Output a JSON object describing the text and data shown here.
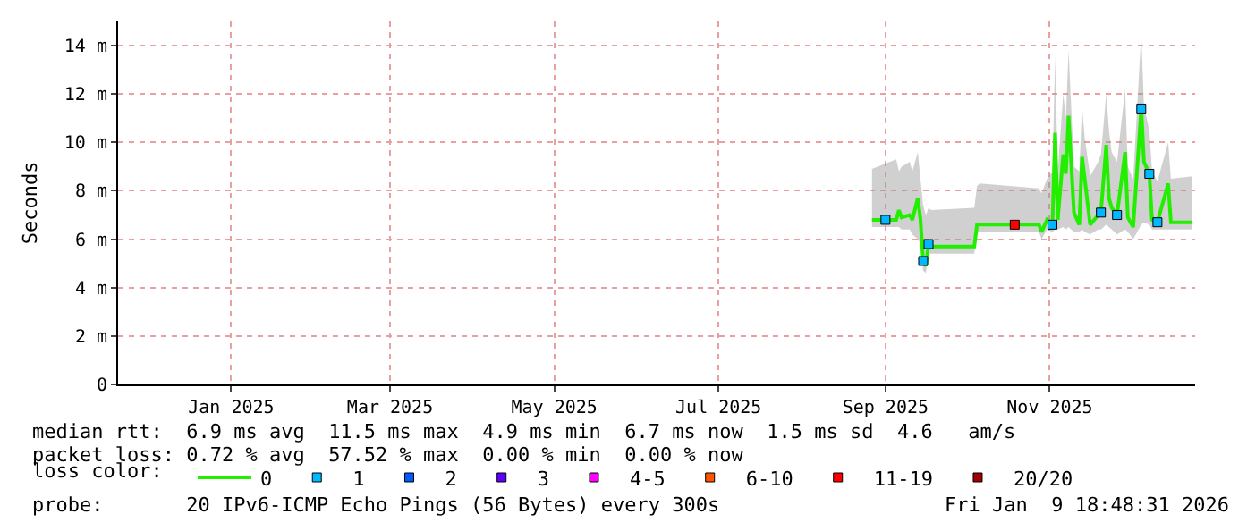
{
  "chart_data": {
    "type": "line",
    "ylabel": "Seconds",
    "legend_title": "loss color:",
    "legend": "bottom",
    "grid": true,
    "marker": "none",
    "line_style": "solid",
    "xlim": [
      "2024-12-05",
      "2026-01-09"
    ],
    "xticks": [
      {
        "value": "2025-01-16",
        "label": "Jan 2025"
      },
      {
        "value": "2025-03-16",
        "label": "Mar 2025"
      },
      {
        "value": "2025-05-16",
        "label": "May 2025"
      },
      {
        "value": "2025-07-16",
        "label": "Jul 2025"
      },
      {
        "value": "2025-09-16",
        "label": "Sep 2025"
      },
      {
        "value": "2025-11-16",
        "label": "Nov 2025"
      }
    ],
    "ylim": [
      0,
      15
    ],
    "yticks": [
      0,
      {
        "value": 2,
        "label": "2 m"
      },
      {
        "value": 4,
        "label": "4 m"
      },
      {
        "value": 6,
        "label": "6 m"
      },
      {
        "value": 8,
        "label": "8 m"
      },
      {
        "value": 10,
        "label": "10 m"
      },
      {
        "value": 12,
        "label": "12 m"
      },
      {
        "value": 14,
        "label": "14 m"
      }
    ],
    "series": [
      {
        "name": "0",
        "color": "#22ee00",
        "x": [
          "2025-09-11",
          "2025-09-20",
          "2025-09-21",
          "2025-09-22",
          "2025-09-25",
          "2025-09-26",
          "2025-09-28",
          "2025-09-29",
          "2025-09-30",
          "2025-10-01",
          "2025-10-02",
          "2025-10-03",
          "2025-10-19",
          "2025-10-20",
          "2025-10-21",
          "2025-11-12",
          "2025-11-13",
          "2025-11-15",
          "2025-11-17",
          "2025-11-18",
          "2025-11-19",
          "2025-11-21",
          "2025-11-22",
          "2025-11-23",
          "2025-11-25",
          "2025-11-27",
          "2025-11-28",
          "2025-11-29",
          "2025-12-01",
          "2025-12-04",
          "2025-12-05",
          "2025-12-07",
          "2025-12-08",
          "2025-12-09",
          "2025-12-11",
          "2025-12-14",
          "2025-12-15",
          "2025-12-17",
          "2025-12-20",
          "2025-12-21",
          "2025-12-23",
          "2025-12-24",
          "2025-12-26",
          "2025-12-30",
          "2025-12-31",
          "2026-01-08"
        ],
        "values": [
          6.8,
          6.8,
          7.2,
          6.9,
          7.0,
          6.8,
          7.7,
          6.8,
          5.1,
          4.9,
          5.8,
          5.7,
          5.7,
          6.6,
          6.6,
          6.6,
          6.3,
          6.8,
          6.6,
          10.4,
          6.8,
          9.5,
          8.7,
          11.1,
          7.1,
          6.6,
          9.4,
          8.5,
          6.6,
          7.0,
          7.1,
          9.9,
          7.7,
          7.3,
          7.0,
          9.6,
          6.9,
          6.5,
          11.4,
          9.2,
          8.7,
          6.8,
          6.7,
          8.3,
          6.7,
          6.7
        ],
        "lower": [
          6.5,
          6.5,
          6.5,
          6.4,
          6.4,
          6.2,
          6.0,
          5.8,
          4.7,
          4.6,
          5.4,
          5.4,
          5.4,
          6.3,
          6.3,
          6.3,
          6.0,
          6.4,
          6.3,
          6.4,
          6.4,
          6.5,
          6.4,
          6.5,
          6.3,
          6.3,
          6.4,
          6.3,
          6.2,
          6.4,
          6.4,
          6.6,
          6.5,
          6.4,
          6.2,
          6.4,
          6.3,
          6.0,
          6.6,
          6.7,
          6.6,
          6.4,
          6.4,
          6.4,
          6.4,
          6.4
        ],
        "upper": [
          8.9,
          9.3,
          8.8,
          9.0,
          9.2,
          8.8,
          9.6,
          8.5,
          7.4,
          7.0,
          7.3,
          7.2,
          7.3,
          8.2,
          8.3,
          8.1,
          7.9,
          8.5,
          8.8,
          13.5,
          8.8,
          12.0,
          11.0,
          13.8,
          9.0,
          8.8,
          11.5,
          10.2,
          8.6,
          9.2,
          9.5,
          12.0,
          10.5,
          9.6,
          9.2,
          12.2,
          9.0,
          8.5,
          14.5,
          11.5,
          10.5,
          8.8,
          8.4,
          10.0,
          8.5,
          8.6
        ]
      },
      {
        "name": "1",
        "color": "#00b8ff",
        "type": "scatter",
        "marker": "square",
        "x": [
          "2025-09-16",
          "2025-09-30",
          "2025-10-02",
          "2025-11-17",
          "2025-12-05",
          "2025-12-11",
          "2025-12-20",
          "2025-12-23",
          "2025-12-26"
        ],
        "values": [
          6.8,
          5.1,
          5.8,
          6.6,
          7.1,
          7.0,
          11.4,
          8.7,
          6.7
        ]
      },
      {
        "name": "2",
        "color": "#0059ff",
        "type": "scatter",
        "marker": "square"
      },
      {
        "name": "3",
        "color": "#5e00ff",
        "type": "scatter",
        "marker": "square"
      },
      {
        "name": "4-5",
        "color": "#ff00ff",
        "type": "scatter",
        "marker": "square"
      },
      {
        "name": "6-10",
        "color": "#ff5500",
        "type": "scatter",
        "marker": "square"
      },
      {
        "name": "11-19",
        "color": "#ff0000",
        "type": "scatter",
        "marker": "square",
        "x": [
          "2025-11-03"
        ],
        "values": [
          6.6
        ]
      },
      {
        "name": "20/20",
        "color": "#a10000",
        "type": "scatter",
        "marker": "square"
      }
    ],
    "annotations": [
      "median rtt:  6.9 ms avg  11.5 ms max  4.9 ms min  6.7 ms now  1.5 ms sd  4.6   am/s",
      "packet loss: 0.72 % avg  57.52 % max  0.00 % min  0.00 % now",
      "probe:       20 IPv6-ICMP Echo Pings (56 Bytes) every 300s",
      "Fri Jan  9 18:48:31 2026"
    ]
  }
}
